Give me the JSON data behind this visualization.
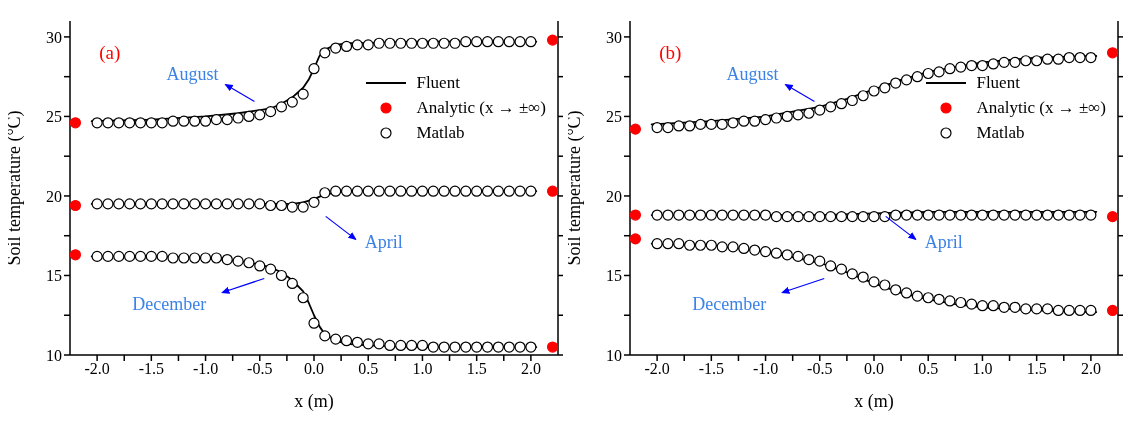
{
  "chart_data": [
    {
      "type": "line",
      "xlabel": "x (m)",
      "ylabel": "Soil temperature (°C)",
      "xlim": [
        -2.25,
        2.25
      ],
      "ylim": [
        10,
        31
      ],
      "xticks": [
        {
          "value": -2,
          "label": "-2.0"
        },
        {
          "value": -1.75,
          "label": null
        },
        {
          "value": -1.5,
          "label": "-1.5"
        },
        {
          "value": -1.25,
          "label": null
        },
        {
          "value": -1,
          "label": "-1.0"
        },
        {
          "value": -0.75,
          "label": null
        },
        {
          "value": -0.5,
          "label": "-0.5"
        },
        {
          "value": -0.25,
          "label": null
        },
        {
          "value": 0,
          "label": "0.0"
        },
        {
          "value": 0.25,
          "label": null
        },
        {
          "value": 0.5,
          "label": "0.5"
        },
        {
          "value": 0.75,
          "label": null
        },
        {
          "value": 1,
          "label": "1.0"
        },
        {
          "value": 1.25,
          "label": null
        },
        {
          "value": 1.5,
          "label": "1.5"
        },
        {
          "value": 1.75,
          "label": null
        },
        {
          "value": 2,
          "label": "2.0"
        }
      ],
      "yticks": [
        10,
        {
          "value": 12.5,
          "label": null
        },
        15,
        {
          "value": 17.5,
          "label": null
        },
        20,
        {
          "value": 22.5,
          "label": null
        },
        25,
        {
          "value": 27.5,
          "label": null
        },
        30
      ],
      "grid": false,
      "legend": "right",
      "x": [
        -2.0,
        -1.9,
        -1.8,
        -1.7,
        -1.6,
        -1.5,
        -1.4,
        -1.3,
        -1.2,
        -1.1,
        -1.0,
        -0.9,
        -0.8,
        -0.7,
        -0.6,
        -0.5,
        -0.4,
        -0.3,
        -0.2,
        -0.1,
        0.0,
        0.1,
        0.2,
        0.3,
        0.4,
        0.5,
        0.6,
        0.7,
        0.8,
        0.9,
        1.0,
        1.1,
        1.2,
        1.3,
        1.4,
        1.5,
        1.6,
        1.7,
        1.8,
        1.9,
        2.0
      ],
      "series": [
        {
          "name": "Fluent",
          "color": "#000000",
          "x": [
            -2.05,
            -1.5,
            -1.0,
            -0.7,
            -0.5,
            -0.4,
            -0.3,
            -0.2,
            -0.1,
            -0.05,
            0,
            0.05,
            0.1,
            0.2,
            0.3,
            0.5,
            1.0,
            1.5,
            2.05
          ],
          "values": [
            24.7,
            24.8,
            25.0,
            25.2,
            25.4,
            25.5,
            25.8,
            26.2,
            26.8,
            27.3,
            28.0,
            28.8,
            29.2,
            29.5,
            29.6,
            29.6,
            29.7,
            29.7,
            29.7
          ]
        },
        {
          "color": "#000000",
          "x": [
            -2.05,
            -1.0,
            -0.5,
            -0.3,
            -0.2,
            -0.1,
            0,
            0.1,
            0.2,
            0.3,
            0.5,
            1.0,
            2.05
          ],
          "values": [
            19.5,
            19.5,
            19.5,
            19.5,
            19.5,
            19.6,
            19.8,
            20.1,
            20.2,
            20.3,
            20.3,
            20.3,
            20.3
          ]
        },
        {
          "color": "#000000",
          "x": [
            -2.05,
            -1.5,
            -1.0,
            -0.7,
            -0.5,
            -0.4,
            -0.3,
            -0.2,
            -0.1,
            -0.05,
            0,
            0.05,
            0.1,
            0.2,
            0.3,
            0.5,
            1.0,
            1.5,
            2.05
          ],
          "values": [
            16.2,
            16.2,
            16.1,
            15.9,
            15.7,
            15.5,
            15.2,
            14.7,
            14.0,
            13.3,
            12.5,
            11.8,
            11.3,
            10.9,
            10.7,
            10.6,
            10.5,
            10.5,
            10.5
          ]
        },
        {
          "type": "scatter",
          "name": "Analytic (x → ±∞)",
          "color": "#ff0000",
          "marker": "circle",
          "x": [
            -2.2,
            -2.2,
            -2.2,
            2.2,
            2.2,
            2.2
          ],
          "values": [
            24.6,
            19.4,
            16.3,
            29.8,
            20.3,
            10.5
          ]
        },
        {
          "type": "scatter",
          "name": "Matlab",
          "color": "#000000",
          "marker": "circle",
          "values": [
            24.6,
            24.6,
            24.6,
            24.6,
            24.6,
            24.6,
            24.6,
            24.7,
            24.7,
            24.7,
            24.7,
            24.8,
            24.8,
            24.9,
            25.0,
            25.1,
            25.3,
            25.6,
            25.9,
            26.4,
            28.0,
            29.0,
            29.3,
            29.4,
            29.5,
            29.5,
            29.6,
            29.6,
            29.6,
            29.6,
            29.6,
            29.6,
            29.6,
            29.6,
            29.7,
            29.7,
            29.7,
            29.7,
            29.7,
            29.7,
            29.7
          ]
        },
        {
          "type": "scatter",
          "color": "#000000",
          "marker": "circle",
          "values": [
            19.5,
            19.5,
            19.5,
            19.5,
            19.5,
            19.5,
            19.5,
            19.5,
            19.5,
            19.5,
            19.5,
            19.5,
            19.5,
            19.5,
            19.5,
            19.5,
            19.4,
            19.4,
            19.3,
            19.3,
            19.6,
            20.2,
            20.3,
            20.3,
            20.3,
            20.3,
            20.3,
            20.3,
            20.3,
            20.3,
            20.3,
            20.3,
            20.3,
            20.3,
            20.3,
            20.3,
            20.3,
            20.3,
            20.3,
            20.3,
            20.3
          ]
        },
        {
          "type": "scatter",
          "color": "#000000",
          "marker": "circle",
          "values": [
            16.2,
            16.2,
            16.2,
            16.2,
            16.2,
            16.2,
            16.2,
            16.1,
            16.1,
            16.1,
            16.1,
            16.1,
            16.0,
            15.9,
            15.8,
            15.6,
            15.4,
            15.0,
            14.5,
            13.6,
            12.0,
            11.2,
            11.0,
            10.9,
            10.8,
            10.7,
            10.7,
            10.6,
            10.6,
            10.6,
            10.6,
            10.5,
            10.5,
            10.5,
            10.5,
            10.5,
            10.5,
            10.5,
            10.5,
            10.5,
            10.5
          ]
        }
      ],
      "annotations": [
        "(a)",
        "August",
        "April",
        "December"
      ]
    },
    {
      "type": "line",
      "xlabel": "x (m)",
      "ylabel": "Soil temperature (°C)",
      "xlim": [
        -2.25,
        2.25
      ],
      "ylim": [
        10,
        31
      ],
      "xticks": [
        {
          "value": -2,
          "label": "-2.0"
        },
        {
          "value": -1.75,
          "label": null
        },
        {
          "value": -1.5,
          "label": "-1.5"
        },
        {
          "value": -1.25,
          "label": null
        },
        {
          "value": -1,
          "label": "-1.0"
        },
        {
          "value": -0.75,
          "label": null
        },
        {
          "value": -0.5,
          "label": "-0.5"
        },
        {
          "value": -0.25,
          "label": null
        },
        {
          "value": 0,
          "label": "0.0"
        },
        {
          "value": 0.25,
          "label": null
        },
        {
          "value": 0.5,
          "label": "0.5"
        },
        {
          "value": 0.75,
          "label": null
        },
        {
          "value": 1,
          "label": "1.0"
        },
        {
          "value": 1.25,
          "label": null
        },
        {
          "value": 1.5,
          "label": "1.5"
        },
        {
          "value": 1.75,
          "label": null
        },
        {
          "value": 2,
          "label": "2.0"
        }
      ],
      "yticks": [
        10,
        {
          "value": 12.5,
          "label": null
        },
        15,
        {
          "value": 17.5,
          "label": null
        },
        20,
        {
          "value": 22.5,
          "label": null
        },
        25,
        {
          "value": 27.5,
          "label": null
        },
        30
      ],
      "grid": false,
      "legend": "right",
      "x": [
        -2.0,
        -1.9,
        -1.8,
        -1.7,
        -1.6,
        -1.5,
        -1.4,
        -1.3,
        -1.2,
        -1.1,
        -1.0,
        -0.9,
        -0.8,
        -0.7,
        -0.6,
        -0.5,
        -0.4,
        -0.3,
        -0.2,
        -0.1,
        0.0,
        0.1,
        0.2,
        0.3,
        0.4,
        0.5,
        0.6,
        0.7,
        0.8,
        0.9,
        1.0,
        1.1,
        1.2,
        1.3,
        1.4,
        1.5,
        1.6,
        1.7,
        1.8,
        1.9,
        2.0
      ],
      "series": [
        {
          "name": "Fluent",
          "color": "#000000",
          "x": [
            -2.05,
            -1.5,
            -1.0,
            -0.5,
            -0.25,
            0,
            0.25,
            0.5,
            0.75,
            1.0,
            1.5,
            2.05
          ],
          "values": [
            24.5,
            24.7,
            25.0,
            25.6,
            26.1,
            26.7,
            27.3,
            27.8,
            28.1,
            28.4,
            28.7,
            28.8
          ]
        },
        {
          "color": "#000000",
          "x": [
            -2.05,
            -1.0,
            -0.5,
            0,
            0.5,
            1.0,
            2.05
          ],
          "values": [
            18.8,
            18.8,
            18.8,
            18.9,
            19.0,
            19.0,
            19.0
          ]
        },
        {
          "color": "#000000",
          "x": [
            -2.05,
            -1.5,
            -1.0,
            -0.5,
            -0.25,
            0,
            0.25,
            0.5,
            0.75,
            1.0,
            1.5,
            2.05
          ],
          "values": [
            17.0,
            16.9,
            16.5,
            15.8,
            15.2,
            14.5,
            13.9,
            13.5,
            13.2,
            13.0,
            12.8,
            12.7
          ]
        },
        {
          "type": "scatter",
          "name": "Analytic (x → ±∞)",
          "color": "#ff0000",
          "marker": "circle",
          "x": [
            -2.2,
            -2.2,
            -2.2,
            2.2,
            2.2,
            2.2
          ],
          "values": [
            24.2,
            18.8,
            17.3,
            29.0,
            18.7,
            12.8
          ]
        },
        {
          "type": "scatter",
          "name": "Matlab",
          "color": "#000000",
          "marker": "circle",
          "values": [
            24.3,
            24.3,
            24.4,
            24.4,
            24.5,
            24.5,
            24.5,
            24.6,
            24.7,
            24.7,
            24.8,
            24.9,
            25.0,
            25.1,
            25.2,
            25.4,
            25.6,
            25.8,
            26.0,
            26.3,
            26.6,
            26.8,
            27.1,
            27.3,
            27.5,
            27.7,
            27.8,
            28.0,
            28.1,
            28.2,
            28.2,
            28.3,
            28.4,
            28.4,
            28.5,
            28.5,
            28.6,
            28.6,
            28.7,
            28.7,
            28.7
          ]
        },
        {
          "type": "scatter",
          "color": "#000000",
          "marker": "circle",
          "values": [
            18.8,
            18.8,
            18.8,
            18.8,
            18.8,
            18.8,
            18.8,
            18.8,
            18.8,
            18.8,
            18.8,
            18.7,
            18.7,
            18.7,
            18.7,
            18.7,
            18.7,
            18.7,
            18.7,
            18.7,
            18.7,
            18.7,
            18.8,
            18.8,
            18.8,
            18.8,
            18.8,
            18.8,
            18.8,
            18.8,
            18.8,
            18.8,
            18.8,
            18.8,
            18.8,
            18.8,
            18.8,
            18.8,
            18.8,
            18.8,
            18.8
          ]
        },
        {
          "type": "scatter",
          "color": "#000000",
          "marker": "circle",
          "values": [
            17.0,
            17.0,
            17.0,
            16.9,
            16.9,
            16.9,
            16.8,
            16.8,
            16.7,
            16.6,
            16.5,
            16.4,
            16.3,
            16.2,
            16.0,
            15.9,
            15.6,
            15.4,
            15.1,
            14.9,
            14.6,
            14.4,
            14.1,
            13.9,
            13.7,
            13.6,
            13.5,
            13.4,
            13.3,
            13.2,
            13.1,
            13.1,
            13.0,
            13.0,
            12.9,
            12.9,
            12.9,
            12.8,
            12.8,
            12.8,
            12.8
          ]
        }
      ],
      "annotations": [
        "(b)",
        "August",
        "April",
        "December"
      ]
    }
  ]
}
